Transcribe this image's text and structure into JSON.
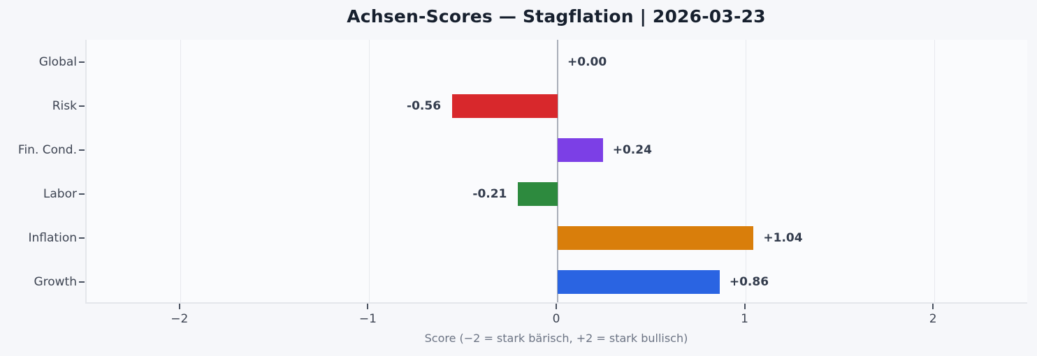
{
  "chart_data": {
    "type": "bar",
    "orientation": "horizontal",
    "title": "Achsen-Scores — Stagflation | 2026-03-23",
    "xlabel": "Score (−2 = stark bärisch, +2 = stark bullisch)",
    "categories": [
      "Global",
      "Risk",
      "Fin. Cond.",
      "Labor",
      "Inflation",
      "Growth"
    ],
    "values": [
      0.0,
      -0.56,
      0.24,
      -0.21,
      1.04,
      0.86
    ],
    "value_labels": [
      "+0.00",
      "-0.56",
      "+0.24",
      "-0.21",
      "+1.04",
      "+0.86"
    ],
    "bar_colors": [
      "#2a64e2",
      "#d8282c",
      "#7c3fe6",
      "#2d8a3e",
      "#d97e0b",
      "#2a64e2"
    ],
    "xlim": [
      -2.5,
      2.5
    ],
    "xticks": [
      -2,
      -1,
      0,
      1,
      2
    ],
    "xtick_labels": [
      "−2",
      "−1",
      "0",
      "1",
      "2"
    ],
    "grid": "vertical gridlines at integer ticks",
    "zero_line": true,
    "legend": "none"
  },
  "colors": {
    "figure_background": "#f6f7fa",
    "plot_background": "#fafbfd",
    "grid_line": "#e7e9ee",
    "zero_line": "#a9aeb9",
    "title_text": "#17202e",
    "axis_text": "#3d4452",
    "value_text": "#333c4d",
    "xlabel_text": "#6c7484"
  }
}
